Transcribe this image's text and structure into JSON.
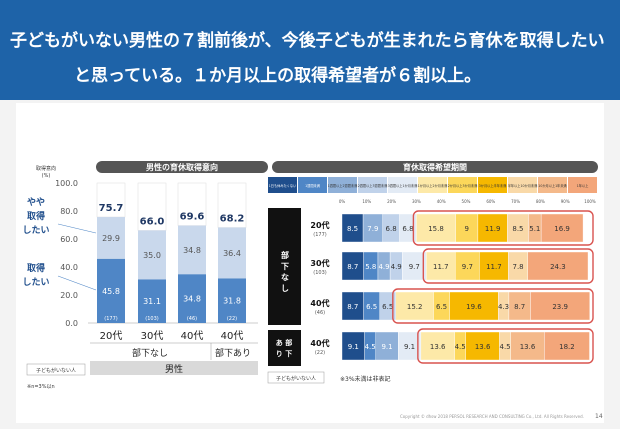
{
  "headline": {
    "line1": "子どもがいない男性の７割前後が、今後子どもが生まれたら育休を取得したい",
    "line2": "と思っている。１か月以上の取得希望者が６割以上。"
  },
  "footer": "Copyright © dhsw 2018 PERSOL RESEARCH AND CONSULTING Co., Ltd. All Rights Reserved.",
  "page_number": "14",
  "chart_data": [
    {
      "type": "bar",
      "title": "男性の育休取得意向",
      "ylabel": "取得意向",
      "yunit": "(%)",
      "ylim": [
        0,
        100
      ],
      "yticks": [
        "0.0",
        "20.0",
        "40.0",
        "60.0",
        "80.0",
        "100.0"
      ],
      "categories": [
        "20代",
        "30代",
        "40代",
        "40代"
      ],
      "sample_sizes": [
        "(177)",
        "(103)",
        "(46)",
        "(22)"
      ],
      "group_labels": [
        "部下なし",
        "部下あり"
      ],
      "outer_label": "男性",
      "series": [
        {
          "name": "取得したい",
          "values": [
            45.8,
            31.1,
            34.8,
            31.8
          ],
          "color": "#4f86c6"
        },
        {
          "name": "やや取得したい",
          "values": [
            29.9,
            35.0,
            34.8,
            36.4
          ],
          "color": "#c9d8ec"
        }
      ],
      "totals": [
        75.7,
        66.0,
        69.6,
        68.2
      ],
      "remainder_color": "#ffffff",
      "note_box": "子どもがいない人",
      "note": "※n=3%以n"
    },
    {
      "type": "bar",
      "orientation": "horizontal-stacked",
      "title": "育休取得希望期間",
      "legend": [
        "1日も休みたくない",
        "1週間未満",
        "1週間以上2週間未満",
        "2週間以上3週間未満",
        "3週間以上1か月未満",
        "1か月以上2か月未満",
        "2か月以上3か月未満",
        "3か月以上半年未満",
        "半年以上10か月未満",
        "10か月以上1年未満",
        "1年以上"
      ],
      "colors": [
        "#1f4e8c",
        "#4f86c6",
        "#8fb0d8",
        "#c0d2ea",
        "#e3ebf5",
        "#fde9a8",
        "#fcd75a",
        "#f6b800",
        "#f9d9a8",
        "#f4b98a",
        "#f3a67a"
      ],
      "xticks": [
        "0%",
        "10%",
        "20%",
        "30%",
        "40%",
        "50%",
        "60%",
        "70%",
        "80%",
        "90%",
        "100%"
      ],
      "group_labels": [
        "部下なし",
        "部下あり"
      ],
      "rows": [
        {
          "label": "20代",
          "n": "(177)",
          "values": [
            8.5,
            0,
            7.9,
            6.8,
            6.8,
            15.8,
            9.0,
            11.9,
            8.5,
            5.1,
            16.9
          ]
        },
        {
          "label": "30代",
          "n": "(103)",
          "values": [
            8.7,
            5.8,
            4.9,
            4.9,
            9.7,
            11.7,
            9.7,
            11.7,
            7.8,
            0,
            24.3
          ]
        },
        {
          "label": "40代",
          "n": "(46)",
          "values": [
            8.7,
            6.5,
            0,
            6.5,
            0,
            15.2,
            6.5,
            19.6,
            4.3,
            8.7,
            23.9
          ]
        },
        {
          "label": "40代",
          "n": "(22)",
          "values": [
            9.1,
            4.5,
            9.1,
            0,
            9.1,
            13.6,
            4.5,
            13.6,
            4.5,
            13.6,
            18.2
          ]
        }
      ],
      "note_box": "子どもがいない人",
      "note": "※3%未満は非表記"
    }
  ]
}
